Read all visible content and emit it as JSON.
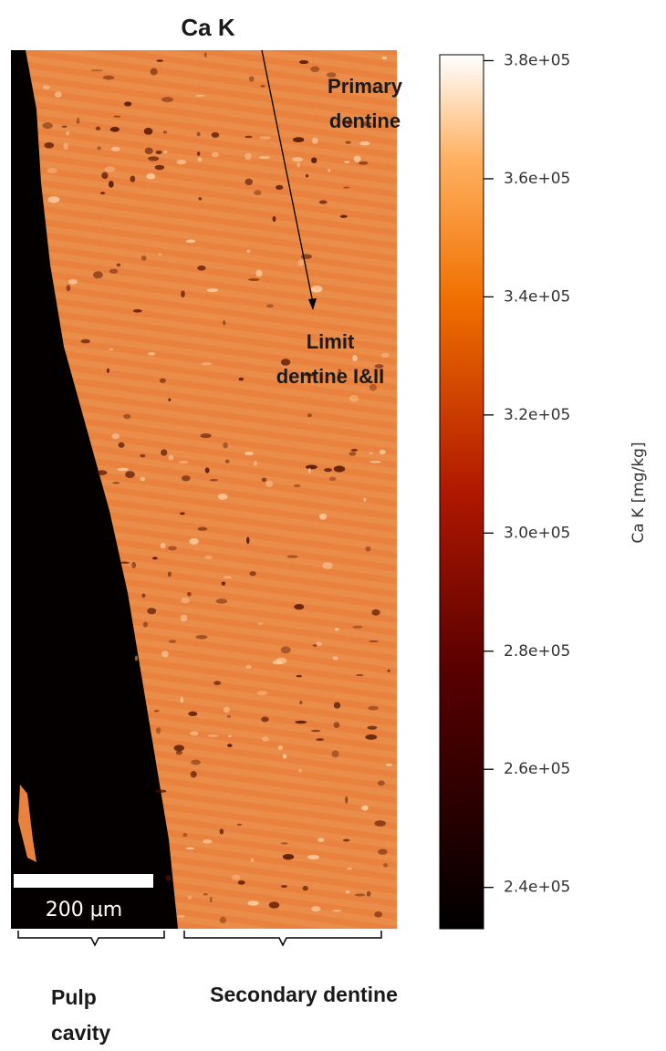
{
  "chart_data": {
    "type": "heatmap",
    "title": "Ca K",
    "annotations": [
      [
        "Primary",
        "dentine"
      ],
      [
        "Limit",
        "dentine I&II"
      ]
    ],
    "scale_bar_label": "200 μm",
    "region_labels": [
      [
        "Pulp",
        "cavity"
      ],
      [
        "Secondary dentine"
      ]
    ],
    "colorbar": {
      "label": "Ca K  [mg/kg]",
      "lim": [
        233000,
        381000
      ],
      "ticks": [
        {
          "value": 240000,
          "label": "2.4e+05"
        },
        {
          "value": 260000,
          "label": "2.6e+05"
        },
        {
          "value": 280000,
          "label": "2.8e+05"
        },
        {
          "value": 300000,
          "label": "3.0e+05"
        },
        {
          "value": 320000,
          "label": "3.2e+05"
        },
        {
          "value": 340000,
          "label": "3.4e+05"
        },
        {
          "value": 360000,
          "label": "3.6e+05"
        },
        {
          "value": 380000,
          "label": "3.8e+05"
        }
      ]
    }
  }
}
